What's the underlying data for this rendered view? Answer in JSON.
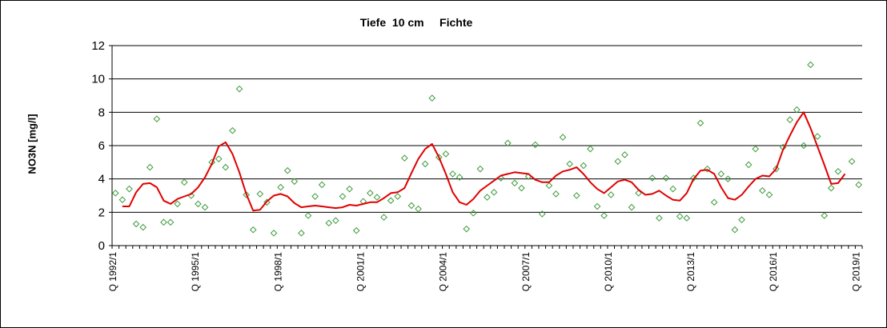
{
  "chart_data": {
    "type": "line",
    "title": "Tiefe  10 cm     Fichte",
    "xlabel": "",
    "ylabel": "NO3N [mg/l]",
    "ylim": [
      0,
      12
    ],
    "yticks": [
      "0",
      "2",
      "4",
      "6",
      "8",
      "10",
      "12"
    ],
    "x_tick_labels": [
      "Q 1992/1",
      "Q 1995/1",
      "Q 1998/1",
      "Q 2001/1",
      "Q 2004/1",
      "Q 2007/1",
      "Q 2010/1",
      "Q 2013/1",
      "Q 2016/1",
      "Q 2019/1"
    ],
    "grid": "horizontal",
    "legend": "none",
    "colors": {
      "line": "#e00000",
      "points": "#3a9a3a",
      "grid": "#000000"
    },
    "series": [
      {
        "type": "scatter",
        "marker": "diamond",
        "values": [
          3.15,
          2.75,
          3.4,
          1.3,
          1.1,
          4.7,
          7.6,
          1.4,
          1.4,
          2.5,
          3.8,
          3.0,
          2.5,
          2.3,
          5.0,
          5.2,
          4.7,
          6.9,
          9.4,
          3.05,
          0.95,
          3.1,
          2.6,
          0.75,
          3.5,
          4.5,
          3.85,
          0.75,
          1.8,
          2.95,
          3.65,
          1.35,
          1.5,
          2.95,
          3.4,
          0.9,
          2.65,
          3.15,
          2.9,
          1.7,
          2.7,
          2.95,
          5.25,
          2.4,
          2.2,
          4.9,
          8.85,
          5.3,
          5.5,
          4.3,
          4.1,
          1.0,
          1.95,
          4.6,
          2.9,
          3.2,
          4.05,
          6.15,
          3.75,
          3.45,
          4.15,
          6.05,
          1.9,
          3.6,
          3.1,
          6.5,
          4.9,
          3.0,
          4.8,
          5.8,
          2.35,
          1.8,
          3.05,
          5.05,
          5.45,
          2.3,
          3.15,
          null,
          4.05,
          1.65,
          4.05,
          3.4,
          1.75,
          1.65,
          4.05,
          7.35,
          4.6,
          2.6,
          4.3,
          4.0,
          0.95,
          1.55,
          4.85,
          5.8,
          3.3,
          3.05,
          4.6,
          5.9,
          7.55,
          8.15,
          6.0,
          10.85,
          6.55,
          1.8,
          3.45,
          4.45,
          null,
          5.05,
          3.65
        ]
      },
      {
        "type": "line",
        "values": [
          null,
          2.35,
          2.35,
          3.2,
          3.7,
          3.75,
          3.5,
          2.7,
          2.5,
          2.8,
          2.95,
          3.1,
          3.5,
          4.1,
          4.9,
          5.95,
          6.2,
          5.5,
          4.4,
          3.1,
          2.1,
          2.15,
          2.65,
          3.0,
          3.1,
          2.95,
          2.55,
          2.3,
          2.35,
          2.4,
          2.35,
          2.3,
          2.25,
          2.3,
          2.45,
          2.4,
          2.5,
          2.6,
          2.6,
          2.85,
          3.15,
          3.2,
          3.45,
          4.35,
          5.2,
          5.8,
          6.1,
          5.3,
          4.3,
          3.2,
          2.6,
          2.45,
          2.8,
          3.3,
          3.6,
          3.9,
          4.2,
          4.3,
          4.4,
          4.35,
          4.3,
          3.95,
          3.8,
          3.8,
          4.2,
          4.45,
          4.55,
          4.7,
          4.3,
          3.8,
          3.4,
          3.15,
          3.5,
          3.85,
          3.95,
          3.8,
          3.35,
          3.05,
          3.1,
          3.3,
          3.0,
          2.75,
          2.7,
          3.15,
          4.0,
          4.5,
          4.55,
          4.3,
          3.5,
          2.85,
          2.75,
          3.05,
          3.55,
          4.0,
          4.2,
          4.15,
          4.6,
          5.75,
          6.6,
          7.4,
          8.0,
          7.05,
          5.95,
          4.85,
          3.7,
          3.75,
          4.3
        ]
      }
    ]
  }
}
